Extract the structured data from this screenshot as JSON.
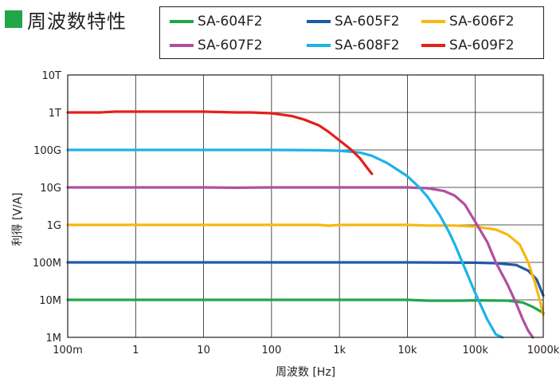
{
  "header": {
    "title": "周波数特性",
    "accent_color": "#21a64a"
  },
  "chart_data": {
    "type": "line",
    "xlabel": "周波数 [Hz]",
    "ylabel": "利得 [V/A]",
    "x_scale": "log",
    "y_scale": "log",
    "xlim": [
      0.1,
      1000000
    ],
    "ylim": [
      1000000,
      10000000000000
    ],
    "grid": true,
    "legend_position": "top",
    "x_ticks": [
      {
        "v": 0.1,
        "label": "100m"
      },
      {
        "v": 1,
        "label": "1"
      },
      {
        "v": 10,
        "label": "10"
      },
      {
        "v": 100,
        "label": "100"
      },
      {
        "v": 1000,
        "label": "1k"
      },
      {
        "v": 10000,
        "label": "10k"
      },
      {
        "v": 100000,
        "label": "100k"
      },
      {
        "v": 1000000,
        "label": "1000k"
      }
    ],
    "y_ticks": [
      {
        "v": 1000000,
        "label": "1M"
      },
      {
        "v": 10000000,
        "label": "10M"
      },
      {
        "v": 100000000,
        "label": "100M"
      },
      {
        "v": 1000000000,
        "label": "1G"
      },
      {
        "v": 10000000000,
        "label": "10G"
      },
      {
        "v": 100000000000,
        "label": "100G"
      },
      {
        "v": 1000000000000,
        "label": "1T"
      },
      {
        "v": 10000000000000,
        "label": "10T"
      }
    ],
    "series": [
      {
        "name": "SA-604F2",
        "color": "#21a64a",
        "x": [
          0.1,
          1,
          10,
          100,
          1000,
          10000,
          20000,
          60000,
          100000,
          300000,
          500000,
          700000,
          1000000
        ],
        "y": [
          10000000.0,
          10000000.0,
          10000000.0,
          10000000.0,
          10000000.0,
          10000000.0,
          9500000.0,
          9500000.0,
          9700000.0,
          9500000.0,
          8500000.0,
          6500000.0,
          4500000.0
        ]
      },
      {
        "name": "SA-605F2",
        "color": "#1f5aa6",
        "x": [
          0.1,
          1,
          10,
          100,
          1000,
          10000,
          100000,
          200000,
          400000,
          600000,
          800000,
          1000000
        ],
        "y": [
          100000000.0,
          100000000.0,
          100000000.0,
          100000000.0,
          100000000.0,
          100000000.0,
          98000000.0,
          95000000.0,
          85000000.0,
          60000000.0,
          35000000.0,
          13000000.0
        ]
      },
      {
        "name": "SA-606F2",
        "color": "#f7b80f",
        "x": [
          0.1,
          1,
          10,
          100,
          500,
          700,
          1000,
          10000,
          20000,
          50000,
          100000,
          200000,
          300000,
          450000,
          600000,
          750000,
          900000,
          1000000
        ],
        "y": [
          1000000000.0,
          1000000000.0,
          1000000000.0,
          1000000000.0,
          1000000000.0,
          950000000.0,
          1000000000.0,
          1000000000.0,
          960000000.0,
          960000000.0,
          900000000.0,
          750000000.0,
          550000000.0,
          300000000.0,
          100000000.0,
          30000000.0,
          9000000.0,
          4000000.0
        ]
      },
      {
        "name": "SA-607F2",
        "color": "#b04fa0",
        "x": [
          0.1,
          1,
          10,
          30,
          100,
          1000,
          10000,
          20000,
          35000,
          50000,
          70000,
          100000,
          150000,
          200000,
          300000,
          400000,
          500000,
          600000,
          700000
        ],
        "y": [
          10000000000.0,
          10000000000.0,
          10000000000.0,
          9800000000.0,
          10000000000.0,
          10000000000.0,
          10000000000.0,
          9500000000.0,
          8000000000.0,
          6000000000.0,
          3500000000.0,
          1200000000.0,
          350000000.0,
          100000000.0,
          25000000.0,
          8000000.0,
          3000000.0,
          1500000.0,
          1000000.0
        ]
      },
      {
        "name": "SA-608F2",
        "color": "#1bb3e8",
        "x": [
          0.1,
          1,
          10,
          100,
          500,
          1000,
          2000,
          3000,
          5000,
          10000,
          15000,
          20000,
          30000,
          40000,
          50000,
          70000,
          100000,
          150000,
          200000,
          250000
        ],
        "y": [
          100000000000.0,
          100000000000.0,
          100000000000.0,
          100000000000.0,
          98000000000.0,
          95000000000.0,
          85000000000.0,
          70000000000.0,
          45000000000.0,
          20000000000.0,
          10000000000.0,
          5500000000.0,
          1800000000.0,
          700000000.0,
          300000000.0,
          70000000.0,
          15000000.0,
          3000000.0,
          1200000.0,
          1000000.0
        ]
      },
      {
        "name": "SA-609F2",
        "color": "#e3201b",
        "x": [
          0.1,
          0.3,
          0.5,
          1,
          10,
          30,
          50,
          100,
          200,
          300,
          500,
          700,
          1000,
          1500,
          2000,
          2500,
          3000
        ],
        "y": [
          1000000000000.0,
          1000000000000.0,
          1050000000000.0,
          1050000000000.0,
          1050000000000.0,
          1000000000000.0,
          1000000000000.0,
          950000000000.0,
          800000000000.0,
          650000000000.0,
          450000000000.0,
          300000000000.0,
          180000000000.0,
          100000000000.0,
          60000000000.0,
          35000000000.0,
          23000000000.0
        ]
      }
    ]
  }
}
